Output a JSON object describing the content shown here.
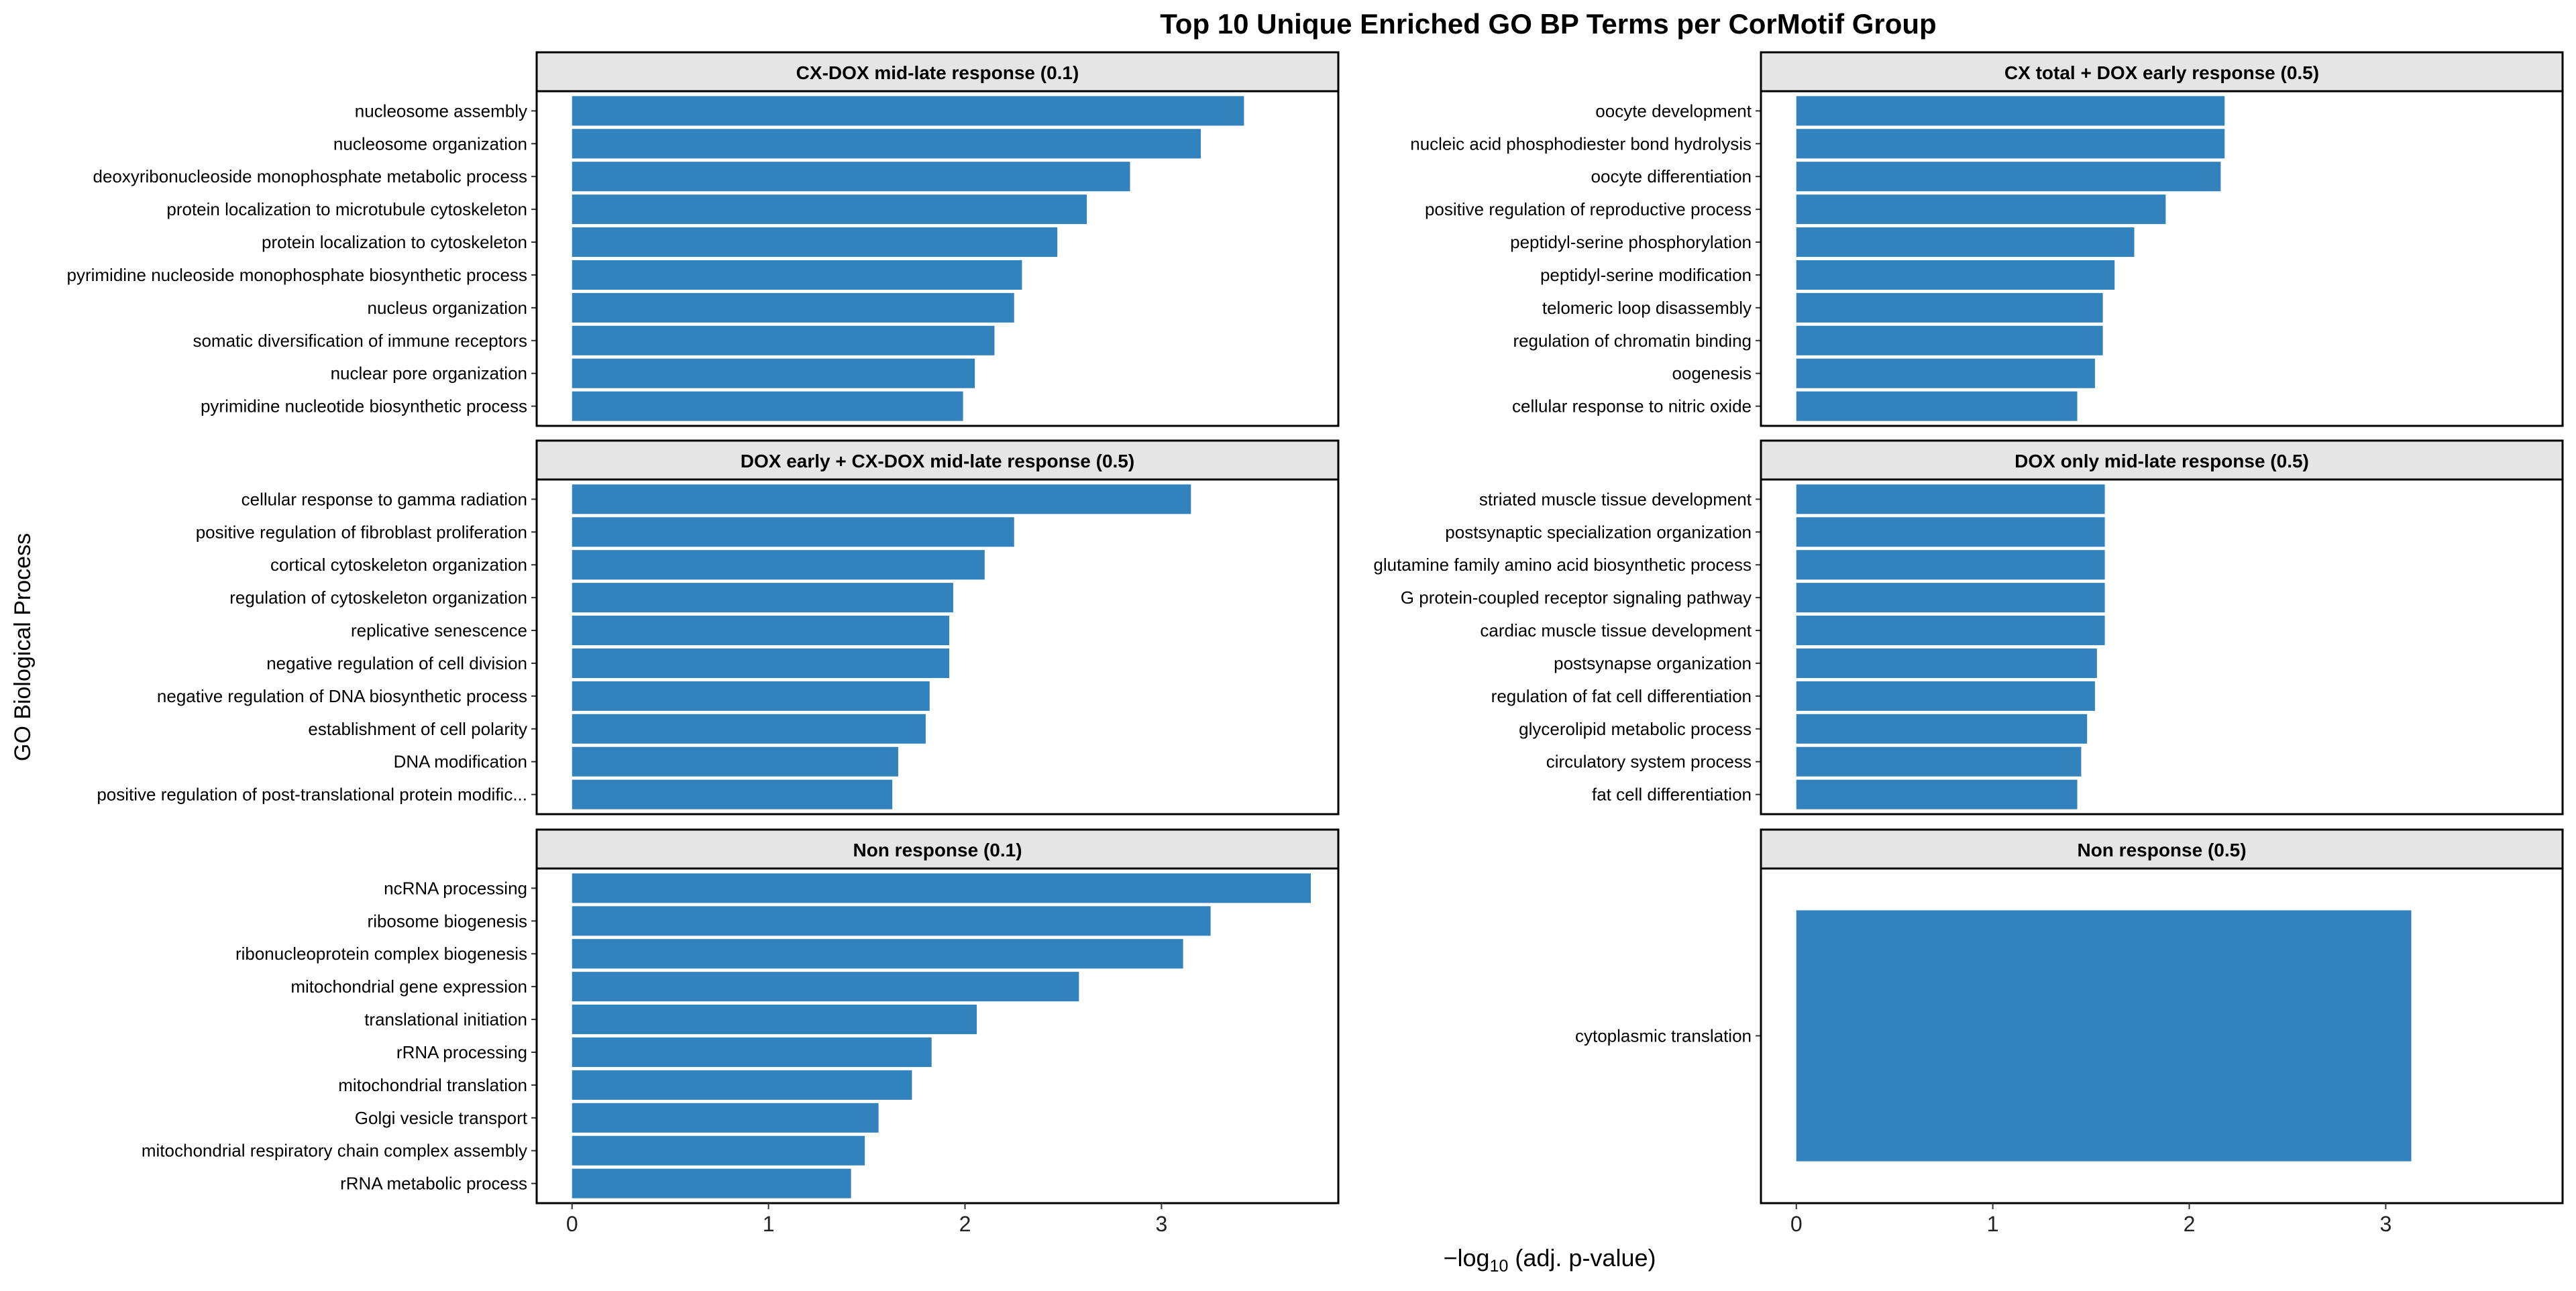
{
  "chart_data": {
    "type": "bar",
    "orientation": "horizontal",
    "title": "Top 10 Unique Enriched GO BP Terms per CorMotif Group",
    "xlabel": "−log₁₀ (adj. p-value)",
    "ylabel": "GO Biological Process",
    "xlim": [
      -0.18,
      3.9
    ],
    "xticks": [
      0,
      1,
      2,
      3
    ],
    "grid": false,
    "bar_color": "#3182BD",
    "strip_color": "#E5E5E5",
    "panels": [
      {
        "title": "CX-DOX mid-late response (0.1)",
        "categories": [
          "nucleosome assembly",
          "nucleosome organization",
          "deoxyribonucleoside monophosphate metabolic process",
          "protein localization to microtubule cytoskeleton",
          "protein localization to cytoskeleton",
          "pyrimidine nucleoside monophosphate biosynthetic process",
          "nucleus organization",
          "somatic diversification of immune receptors",
          "nuclear pore organization",
          "pyrimidine nucleotide biosynthetic process"
        ],
        "values": [
          3.42,
          3.2,
          2.84,
          2.62,
          2.47,
          2.29,
          2.25,
          2.15,
          2.05,
          1.99
        ]
      },
      {
        "title": "CX total + DOX early response (0.5)",
        "categories": [
          "oocyte development",
          "nucleic acid phosphodiester bond hydrolysis",
          "oocyte differentiation",
          "positive regulation of reproductive process",
          "peptidyl-serine phosphorylation",
          "peptidyl-serine modification",
          "telomeric loop disassembly",
          "regulation of chromatin binding",
          "oogenesis",
          "cellular response to nitric oxide"
        ],
        "values": [
          2.18,
          2.18,
          2.16,
          1.88,
          1.72,
          1.62,
          1.56,
          1.56,
          1.52,
          1.43
        ]
      },
      {
        "title": "DOX early + CX-DOX mid-late response (0.5)",
        "categories": [
          "cellular response to gamma radiation",
          "positive regulation of fibroblast proliferation",
          "cortical cytoskeleton organization",
          "regulation of cytoskeleton organization",
          "replicative senescence",
          "negative regulation of cell division",
          "negative regulation of DNA biosynthetic process",
          "establishment of cell polarity",
          "DNA modification",
          "positive regulation of post-translational protein modific..."
        ],
        "values": [
          3.15,
          2.25,
          2.1,
          1.94,
          1.92,
          1.92,
          1.82,
          1.8,
          1.66,
          1.63
        ]
      },
      {
        "title": "DOX only mid-late response (0.5)",
        "categories": [
          "striated muscle tissue development",
          "postsynaptic specialization organization",
          "glutamine family amino acid biosynthetic process",
          "G protein-coupled receptor signaling pathway",
          "cardiac muscle tissue development",
          "postsynapse organization",
          "regulation of fat cell differentiation",
          "glycerolipid metabolic process",
          "circulatory system process",
          "fat cell differentiation"
        ],
        "values": [
          1.57,
          1.57,
          1.57,
          1.57,
          1.57,
          1.53,
          1.52,
          1.48,
          1.45,
          1.43
        ]
      },
      {
        "title": "Non response (0.1)",
        "categories": [
          "ncRNA processing",
          "ribosome biogenesis",
          "ribonucleoprotein complex biogenesis",
          "mitochondrial gene expression",
          "translational initiation",
          "rRNA processing",
          "mitochondrial translation",
          "Golgi vesicle transport",
          "mitochondrial respiratory chain complex assembly",
          "rRNA metabolic process"
        ],
        "values": [
          3.76,
          3.25,
          3.11,
          2.58,
          2.06,
          1.83,
          1.73,
          1.56,
          1.49,
          1.42
        ]
      },
      {
        "title": "Non response (0.5)",
        "categories": [
          "cytoplasmic translation"
        ],
        "values": [
          3.13
        ]
      }
    ]
  }
}
